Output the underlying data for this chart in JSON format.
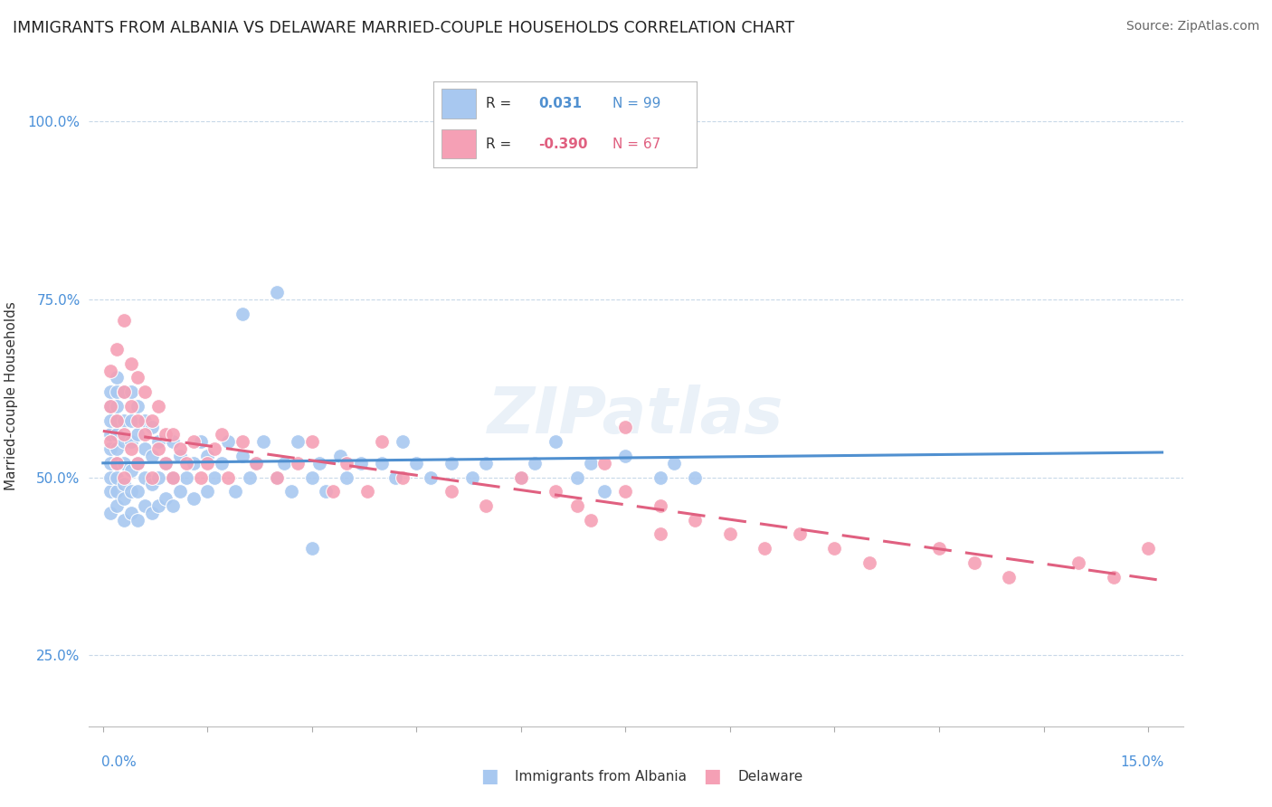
{
  "title": "IMMIGRANTS FROM ALBANIA VS DELAWARE MARRIED-COUPLE HOUSEHOLDS CORRELATION CHART",
  "source": "Source: ZipAtlas.com",
  "ylabel": "Married-couple Households",
  "ylim": [
    0.15,
    1.08
  ],
  "xlim": [
    -0.002,
    0.155
  ],
  "yticks": [
    0.25,
    0.5,
    0.75,
    1.0
  ],
  "ytick_labels": [
    "25.0%",
    "50.0%",
    "75.0%",
    "100.0%"
  ],
  "xticks": [
    0.0,
    0.015,
    0.03,
    0.045,
    0.06,
    0.075,
    0.09,
    0.105,
    0.12,
    0.135,
    0.15
  ],
  "series": [
    {
      "name": "Immigrants from Albania",
      "color": "#a8c8f0",
      "R": 0.031,
      "N": 99,
      "trend_color": "#5090d0",
      "trend_solid": true
    },
    {
      "name": "Delaware",
      "color": "#f5a0b5",
      "R": -0.39,
      "N": 67,
      "trend_color": "#e06080",
      "trend_solid": false
    }
  ],
  "watermark": "ZIPatlas",
  "blue_trend": [
    0.52,
    0.535
  ],
  "pink_trend": [
    0.565,
    0.355
  ],
  "blue_x": [
    0.001,
    0.001,
    0.001,
    0.001,
    0.001,
    0.001,
    0.001,
    0.001,
    0.001,
    0.002,
    0.002,
    0.002,
    0.002,
    0.002,
    0.002,
    0.002,
    0.002,
    0.002,
    0.002,
    0.003,
    0.003,
    0.003,
    0.003,
    0.003,
    0.003,
    0.003,
    0.004,
    0.004,
    0.004,
    0.004,
    0.004,
    0.004,
    0.005,
    0.005,
    0.005,
    0.005,
    0.005,
    0.006,
    0.006,
    0.006,
    0.006,
    0.007,
    0.007,
    0.007,
    0.007,
    0.008,
    0.008,
    0.008,
    0.009,
    0.009,
    0.01,
    0.01,
    0.01,
    0.011,
    0.011,
    0.012,
    0.013,
    0.013,
    0.014,
    0.015,
    0.015,
    0.016,
    0.017,
    0.018,
    0.019,
    0.02,
    0.021,
    0.022,
    0.023,
    0.025,
    0.026,
    0.027,
    0.028,
    0.03,
    0.031,
    0.032,
    0.034,
    0.035,
    0.037,
    0.04,
    0.042,
    0.043,
    0.045,
    0.047,
    0.05,
    0.053,
    0.055,
    0.06,
    0.062,
    0.065,
    0.068,
    0.07,
    0.072,
    0.075,
    0.08,
    0.082,
    0.085,
    0.03,
    0.025,
    0.02
  ],
  "blue_y": [
    0.48,
    0.5,
    0.52,
    0.54,
    0.56,
    0.58,
    0.6,
    0.45,
    0.62,
    0.46,
    0.48,
    0.5,
    0.52,
    0.54,
    0.56,
    0.58,
    0.6,
    0.62,
    0.64,
    0.44,
    0.47,
    0.49,
    0.52,
    0.55,
    0.58,
    0.62,
    0.45,
    0.48,
    0.51,
    0.55,
    0.58,
    0.62,
    0.44,
    0.48,
    0.52,
    0.56,
    0.6,
    0.46,
    0.5,
    0.54,
    0.58,
    0.45,
    0.49,
    0.53,
    0.57,
    0.46,
    0.5,
    0.55,
    0.47,
    0.52,
    0.46,
    0.5,
    0.55,
    0.48,
    0.53,
    0.5,
    0.47,
    0.52,
    0.55,
    0.48,
    0.53,
    0.5,
    0.52,
    0.55,
    0.48,
    0.53,
    0.5,
    0.52,
    0.55,
    0.5,
    0.52,
    0.48,
    0.55,
    0.5,
    0.52,
    0.48,
    0.53,
    0.5,
    0.52,
    0.52,
    0.5,
    0.55,
    0.52,
    0.5,
    0.52,
    0.5,
    0.52,
    0.5,
    0.52,
    0.55,
    0.5,
    0.52,
    0.48,
    0.53,
    0.5,
    0.52,
    0.5,
    0.4,
    0.76,
    0.73
  ],
  "pink_x": [
    0.001,
    0.001,
    0.001,
    0.002,
    0.002,
    0.002,
    0.003,
    0.003,
    0.003,
    0.003,
    0.004,
    0.004,
    0.004,
    0.005,
    0.005,
    0.005,
    0.006,
    0.006,
    0.007,
    0.007,
    0.008,
    0.008,
    0.009,
    0.009,
    0.01,
    0.01,
    0.011,
    0.012,
    0.013,
    0.014,
    0.015,
    0.016,
    0.017,
    0.018,
    0.02,
    0.022,
    0.025,
    0.028,
    0.03,
    0.033,
    0.035,
    0.038,
    0.04,
    0.043,
    0.05,
    0.055,
    0.06,
    0.065,
    0.068,
    0.07,
    0.072,
    0.075,
    0.08,
    0.085,
    0.09,
    0.095,
    0.1,
    0.105,
    0.11,
    0.12,
    0.125,
    0.13,
    0.14,
    0.145,
    0.15,
    0.075,
    0.08
  ],
  "pink_y": [
    0.55,
    0.6,
    0.65,
    0.52,
    0.58,
    0.68,
    0.5,
    0.56,
    0.62,
    0.72,
    0.54,
    0.6,
    0.66,
    0.52,
    0.58,
    0.64,
    0.56,
    0.62,
    0.5,
    0.58,
    0.54,
    0.6,
    0.52,
    0.56,
    0.5,
    0.56,
    0.54,
    0.52,
    0.55,
    0.5,
    0.52,
    0.54,
    0.56,
    0.5,
    0.55,
    0.52,
    0.5,
    0.52,
    0.55,
    0.48,
    0.52,
    0.48,
    0.55,
    0.5,
    0.48,
    0.46,
    0.5,
    0.48,
    0.46,
    0.44,
    0.52,
    0.48,
    0.46,
    0.44,
    0.42,
    0.4,
    0.42,
    0.4,
    0.38,
    0.4,
    0.38,
    0.36,
    0.38,
    0.36,
    0.4,
    0.57,
    0.42
  ]
}
